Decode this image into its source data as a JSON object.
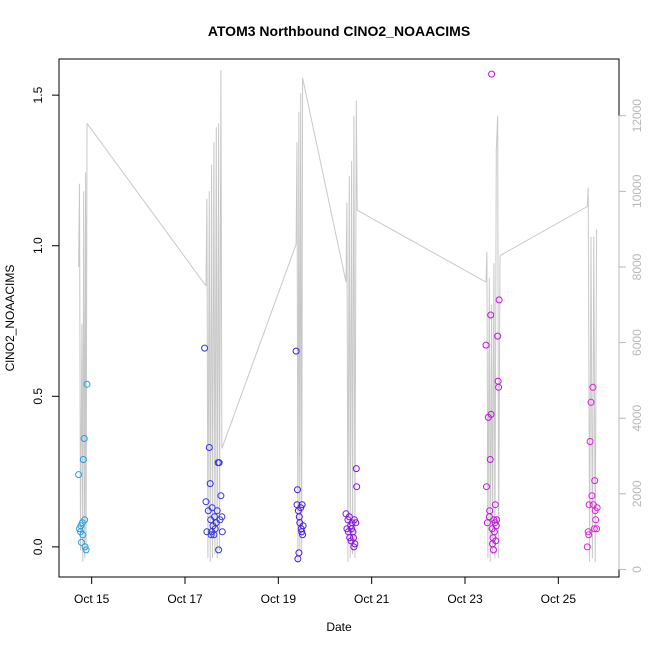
{
  "chart_data": {
    "type": "scatter",
    "title": "ATOM3 Northbound ClNO2_NOAACIMS",
    "xlabel": "Date",
    "ylabel": "ClNO2_NOAACIMS",
    "x_range": [
      14.3,
      26.3
    ],
    "ylim": [
      -0.1,
      1.62
    ],
    "y2lim": [
      -200,
      13500
    ],
    "x_ticks": [
      {
        "value": 15,
        "label": "Oct 15"
      },
      {
        "value": 17,
        "label": "Oct 17"
      },
      {
        "value": 19,
        "label": "Oct 19"
      },
      {
        "value": 21,
        "label": "Oct 21"
      },
      {
        "value": 23,
        "label": "Oct 23"
      },
      {
        "value": 25,
        "label": "Oct 25"
      }
    ],
    "y_ticks": [
      {
        "value": 0,
        "label": "0.0"
      },
      {
        "value": 0.5,
        "label": "0.5"
      },
      {
        "value": 1.0,
        "label": "1.0"
      },
      {
        "value": 1.5,
        "label": "1.5"
      }
    ],
    "y2_ticks": [
      {
        "value": 0,
        "label": "0"
      },
      {
        "value": 2000,
        "label": "2000"
      },
      {
        "value": 4000,
        "label": "4000"
      },
      {
        "value": 6000,
        "label": "6000"
      },
      {
        "value": 8000,
        "label": "8000"
      },
      {
        "value": 10000,
        "label": "10000"
      },
      {
        "value": 12000,
        "label": "12000"
      }
    ],
    "secondary_series": {
      "color": "#c8c8c8",
      "segments": [
        [
          [
            14.72,
            8000
          ],
          [
            14.74,
            10200
          ],
          [
            14.76,
            500
          ],
          [
            14.79,
            6500
          ],
          [
            14.81,
            200
          ],
          [
            14.83,
            10000
          ],
          [
            14.85,
            300
          ],
          [
            14.87,
            10500
          ],
          [
            14.88,
            500
          ],
          [
            14.9,
            11800
          ]
        ],
        [
          [
            14.9,
            11800
          ],
          [
            17.45,
            7500
          ]
        ],
        [
          [
            17.45,
            7500
          ],
          [
            17.47,
            9800
          ],
          [
            17.49,
            300
          ],
          [
            17.52,
            10000
          ],
          [
            17.54,
            200
          ],
          [
            17.57,
            10700
          ],
          [
            17.59,
            300
          ],
          [
            17.62,
            11300
          ],
          [
            17.64,
            400
          ],
          [
            17.67,
            11700
          ],
          [
            17.69,
            300
          ],
          [
            17.72,
            11800
          ],
          [
            17.74,
            500
          ],
          [
            17.77,
            13200
          ],
          [
            17.79,
            3200
          ]
        ],
        [
          [
            17.79,
            3200
          ],
          [
            19.38,
            8600
          ]
        ],
        [
          [
            19.38,
            8600
          ],
          [
            19.4,
            11300
          ],
          [
            19.42,
            200
          ],
          [
            19.44,
            12100
          ],
          [
            19.46,
            500
          ],
          [
            19.48,
            12600
          ],
          [
            19.5,
            400
          ],
          [
            19.52,
            13000
          ]
        ],
        [
          [
            19.52,
            13000
          ],
          [
            20.45,
            7600
          ]
        ],
        [
          [
            20.45,
            7600
          ],
          [
            20.47,
            9700
          ],
          [
            20.49,
            200
          ],
          [
            20.52,
            10400
          ],
          [
            20.54,
            300
          ],
          [
            20.57,
            10800
          ],
          [
            20.59,
            400
          ],
          [
            20.62,
            12000
          ],
          [
            20.64,
            300
          ],
          [
            20.67,
            12400
          ],
          [
            20.69,
            9500
          ]
        ],
        [
          [
            20.69,
            9500
          ],
          [
            23.45,
            7600
          ]
        ],
        [
          [
            23.45,
            7600
          ],
          [
            23.47,
            8400
          ],
          [
            23.49,
            300
          ],
          [
            23.52,
            7700
          ],
          [
            23.54,
            200
          ],
          [
            23.57,
            7000
          ],
          [
            23.59,
            400
          ],
          [
            23.62,
            8100
          ],
          [
            23.64,
            300
          ],
          [
            23.67,
            11100
          ],
          [
            23.7,
            12000
          ],
          [
            23.72,
            300
          ],
          [
            23.75,
            8300
          ]
        ],
        [
          [
            23.75,
            8300
          ],
          [
            25.62,
            9600
          ]
        ],
        [
          [
            25.62,
            9600
          ],
          [
            25.64,
            10100
          ],
          [
            25.67,
            200
          ],
          [
            25.7,
            8800
          ],
          [
            25.73,
            300
          ],
          [
            25.76,
            8800
          ],
          [
            25.79,
            200
          ],
          [
            25.82,
            9000
          ]
        ]
      ]
    },
    "series": [
      {
        "color": "#1fa1e8",
        "points": [
          [
            14.72,
            0.24
          ],
          [
            14.74,
            0.06
          ],
          [
            14.76,
            0.05
          ],
          [
            14.77,
            0.07
          ],
          [
            14.78,
            0.015
          ],
          [
            14.8,
            0.08
          ],
          [
            14.81,
            0.04
          ],
          [
            14.82,
            0.29
          ],
          [
            14.84,
            0.36
          ],
          [
            14.85,
            0.09
          ],
          [
            14.86,
            0.0
          ],
          [
            14.88,
            -0.01
          ],
          [
            14.9,
            0.54
          ]
        ]
      },
      {
        "color": "#3434e0",
        "points": [
          [
            17.42,
            0.66
          ],
          [
            17.45,
            0.15
          ],
          [
            17.47,
            0.05
          ],
          [
            17.5,
            0.12
          ],
          [
            17.52,
            0.33
          ],
          [
            17.54,
            0.21
          ],
          [
            17.55,
            0.09
          ],
          [
            17.57,
            0.05
          ],
          [
            17.58,
            0.13
          ],
          [
            17.6,
            0.07
          ],
          [
            17.62,
            0.04
          ],
          [
            17.63,
            0.1
          ],
          [
            17.65,
            0.06
          ],
          [
            17.67,
            0.08
          ],
          [
            17.69,
            0.12
          ],
          [
            17.71,
            0.28
          ],
          [
            17.72,
            -0.01
          ],
          [
            17.73,
            0.28
          ],
          [
            17.75,
            0.09
          ],
          [
            17.77,
            0.17
          ],
          [
            17.79,
            0.1
          ],
          [
            17.8,
            0.05
          ],
          [
            17.56,
            0.04
          ]
        ],
        "note": ""
      },
      {
        "color": "#4a18d8",
        "points": [
          [
            19.38,
            0.65
          ],
          [
            19.4,
            0.14
          ],
          [
            19.41,
            0.19
          ],
          [
            19.42,
            -0.04
          ],
          [
            19.44,
            -0.02
          ],
          [
            19.45,
            0.1
          ],
          [
            19.46,
            0.08
          ],
          [
            19.48,
            0.13
          ],
          [
            19.49,
            0.06
          ],
          [
            19.5,
            0.05
          ],
          [
            19.51,
            0.14
          ],
          [
            19.52,
            0.04
          ],
          [
            19.53,
            0.07
          ],
          [
            19.43,
            0.12
          ]
        ]
      },
      {
        "color": "#8a12dd",
        "points": [
          [
            20.45,
            0.11
          ],
          [
            20.47,
            0.06
          ],
          [
            20.49,
            0.09
          ],
          [
            20.5,
            0.05
          ],
          [
            20.52,
            0.1
          ],
          [
            20.53,
            0.03
          ],
          [
            20.55,
            0.07
          ],
          [
            20.56,
            0.02
          ],
          [
            20.57,
            0.06
          ],
          [
            20.58,
            0.08
          ],
          [
            20.6,
            0.05
          ],
          [
            20.61,
            0.03
          ],
          [
            20.62,
            0.0
          ],
          [
            20.63,
            0.09
          ],
          [
            20.64,
            0.01
          ],
          [
            20.66,
            0.08
          ],
          [
            20.67,
            0.26
          ],
          [
            20.68,
            0.2
          ]
        ]
      },
      {
        "color": "#c414e0",
        "points": [
          [
            23.45,
            0.67
          ],
          [
            23.46,
            0.2
          ],
          [
            23.48,
            0.08
          ],
          [
            23.5,
            0.43
          ],
          [
            23.52,
            0.1
          ],
          [
            23.53,
            0.12
          ],
          [
            23.54,
            0.29
          ],
          [
            23.55,
            0.77
          ],
          [
            23.56,
            0.44
          ],
          [
            23.57,
            1.57
          ],
          [
            23.58,
            0.06
          ],
          [
            23.6,
            0.03
          ],
          [
            23.61,
            -0.01
          ],
          [
            23.62,
            0.09
          ],
          [
            23.63,
            0.05
          ],
          [
            23.64,
            0.08
          ],
          [
            23.65,
            0.14
          ],
          [
            23.67,
            0.07
          ],
          [
            23.68,
            0.09
          ],
          [
            23.7,
            0.7
          ],
          [
            23.71,
            0.55
          ],
          [
            23.72,
            0.53
          ],
          [
            23.73,
            0.82
          ],
          [
            23.59,
            0.01
          ],
          [
            23.66,
            0.02
          ]
        ]
      },
      {
        "color": "#e01ee0",
        "points": [
          [
            25.62,
            0.0
          ],
          [
            25.64,
            0.05
          ],
          [
            25.66,
            0.14
          ],
          [
            25.68,
            0.35
          ],
          [
            25.7,
            0.48
          ],
          [
            25.72,
            0.17
          ],
          [
            25.74,
            0.53
          ],
          [
            25.75,
            0.14
          ],
          [
            25.77,
            0.06
          ],
          [
            25.78,
            0.22
          ],
          [
            25.79,
            0.12
          ],
          [
            25.8,
            0.09
          ],
          [
            25.82,
            0.06
          ],
          [
            25.83,
            0.13
          ],
          [
            25.65,
            0.04
          ]
        ]
      }
    ]
  }
}
